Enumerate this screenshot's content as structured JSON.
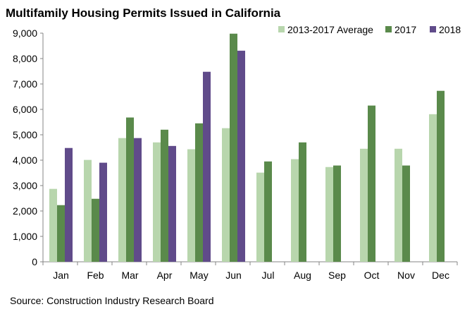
{
  "chart_data": {
    "type": "bar",
    "title": "Multifamily Housing Permits Issued in California",
    "source": "Source: Construction Industry Research Board",
    "categories": [
      "Jan",
      "Feb",
      "Mar",
      "Apr",
      "May",
      "Jun",
      "Jul",
      "Aug",
      "Sep",
      "Oct",
      "Nov",
      "Dec"
    ],
    "series": [
      {
        "name": "2013-2017 Average",
        "color": "#b8d6ad",
        "values": [
          2870,
          4010,
          4870,
          4700,
          4430,
          5260,
          3510,
          4040,
          3730,
          4450,
          4450,
          5810
        ]
      },
      {
        "name": "2017",
        "color": "#5a8a4b",
        "values": [
          2230,
          2480,
          5680,
          5200,
          5450,
          8980,
          3950,
          4700,
          3790,
          6150,
          3790,
          6730
        ]
      },
      {
        "name": "2018",
        "color": "#604b8a",
        "values": [
          4480,
          3900,
          4870,
          4560,
          7480,
          8310,
          null,
          null,
          null,
          null,
          null,
          null
        ]
      }
    ],
    "ylim": [
      0,
      9000
    ],
    "yticks": [
      "0",
      "1,000",
      "2,000",
      "3,000",
      "4,000",
      "5,000",
      "6,000",
      "7,000",
      "8,000",
      "9,000"
    ],
    "grid": false,
    "legend": "top-right"
  }
}
